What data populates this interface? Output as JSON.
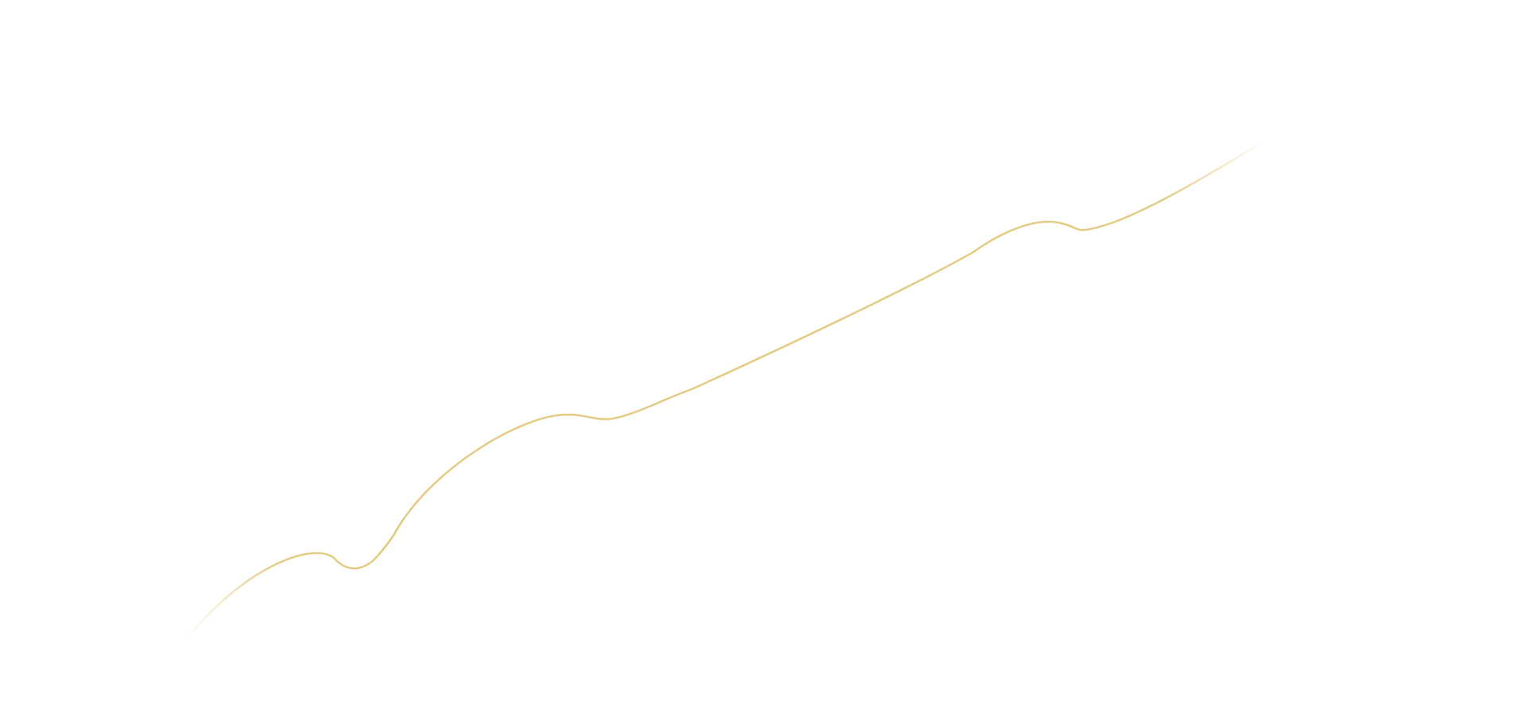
{
  "background_color": "#ffffff",
  "line": {
    "color": "#e3c97e",
    "fades_at_ends": true
  }
}
